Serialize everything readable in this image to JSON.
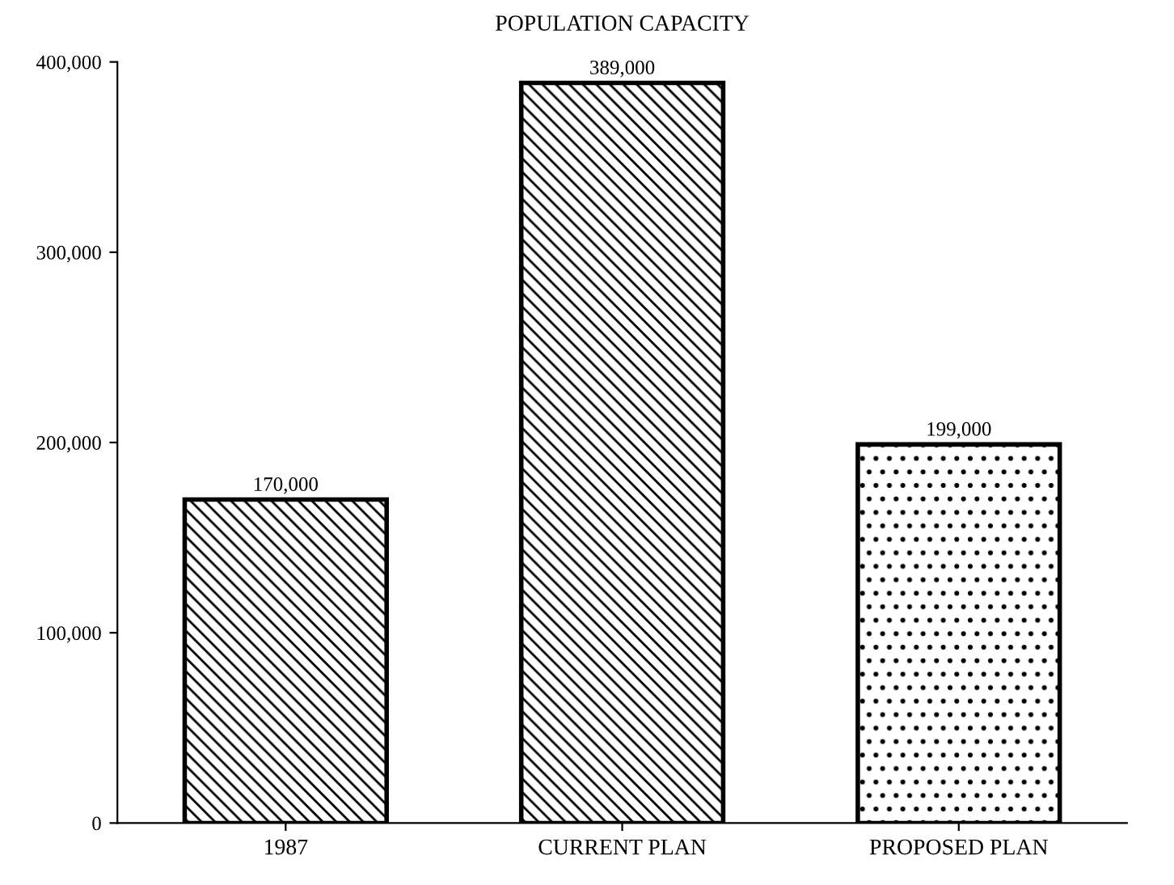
{
  "chart_data": {
    "type": "bar",
    "title": "POPULATION CAPACITY",
    "categories": [
      "1987",
      "CURRENT PLAN",
      "PROPOSED PLAN"
    ],
    "values": [
      170000,
      389000,
      199000
    ],
    "value_labels": [
      "170,000",
      "389,000",
      "199,000"
    ],
    "colors": [
      "#000000",
      "#000000",
      "#000000"
    ],
    "ylim": [
      0,
      400000
    ],
    "yticks": [
      0,
      {
        "value": 100000,
        "label": "100,000"
      },
      {
        "value": 200000,
        "label": "200,000"
      },
      {
        "value": 300000,
        "label": "300,000"
      },
      {
        "value": 400000,
        "label": "400,000"
      }
    ],
    "grid": false,
    "legend": false
  }
}
